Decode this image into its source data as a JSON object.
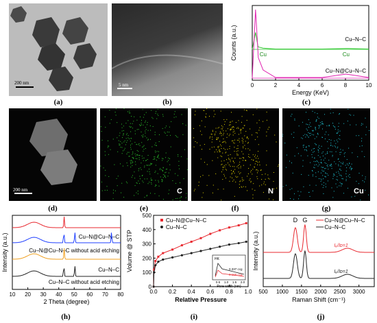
{
  "panel_letters": [
    "(a)",
    "(b)",
    "(c)",
    "(d)",
    "(e)",
    "(f)",
    "(g)",
    "(h)",
    "(i)",
    "(j)"
  ],
  "scale_bars": {
    "a": "200 nm",
    "b": "5 nm",
    "d": "200 nm"
  },
  "mapping_labels": {
    "e": "C",
    "f": "N",
    "g": "Cu"
  },
  "colors": {
    "red": "#e8282f",
    "black": "#222222",
    "blue": "#1f3fff",
    "orange": "#f0a020",
    "magenta": "#e020b0",
    "green": "#2ec82e",
    "yellow": "#e8d800",
    "cyan": "#20c8d8"
  },
  "chart_data": [
    {
      "id": "c",
      "type": "line",
      "xlabel": "Energy (KeV)",
      "ylabel": "Counts (a.u.)",
      "xlim": [
        0,
        10
      ],
      "xticks": [
        0,
        2,
        4,
        6,
        8,
        10
      ],
      "series": [
        {
          "name": "Cu–N–C",
          "x": [
            0,
            0.28,
            0.5,
            0.93,
            2,
            4,
            6,
            8.05,
            10
          ],
          "y": [
            0,
            0.55,
            0.08,
            0.04,
            0.01,
            0.01,
            0.01,
            0.03,
            0.01
          ]
        },
        {
          "name": "Cu–N@Cu–N–C",
          "x": [
            0,
            0.28,
            0.39,
            0.52,
            0.93,
            2,
            4,
            6,
            8.05,
            10
          ],
          "y": [
            0,
            1.0,
            0.7,
            0.3,
            0.12,
            0.01,
            0.01,
            0.01,
            0.06,
            0.01
          ]
        }
      ],
      "annotations": [
        "Cu",
        "Cu"
      ]
    },
    {
      "id": "h",
      "type": "line",
      "xlabel": "2 Theta (degree)",
      "ylabel": "Intensity (a.u.)",
      "xlim": [
        10,
        80
      ],
      "xticks": [
        10,
        20,
        30,
        40,
        50,
        60,
        70,
        80
      ],
      "series": [
        {
          "name": "Cu–N@Cu–N–C",
          "peaks": [
            24,
            43.5
          ]
        },
        {
          "name": "Cu–N@Cu–N–C without acid etching",
          "peaks": [
            24,
            43.3,
            50.4,
            74.1
          ]
        },
        {
          "name": "Cu–N–C",
          "peaks": [
            24,
            43.5
          ]
        },
        {
          "name": "Cu–N–C without acid etching",
          "peaks": [
            24,
            43.3,
            50.4
          ]
        }
      ]
    },
    {
      "id": "i",
      "type": "line",
      "xlabel": "Relative Pressure",
      "ylabel": "Volume @ STP",
      "xlim": [
        0,
        1.0
      ],
      "ylim": [
        0,
        500
      ],
      "xticks": [
        0.0,
        0.2,
        0.4,
        0.6,
        0.8,
        1.0
      ],
      "yticks": [
        0,
        100,
        200,
        300,
        400,
        500
      ],
      "series": [
        {
          "name": "Cu–N@Cu–N–C",
          "x": [
            0,
            0.005,
            0.02,
            0.05,
            0.1,
            0.2,
            0.3,
            0.4,
            0.5,
            0.6,
            0.7,
            0.8,
            0.9,
            0.98
          ],
          "y": [
            0,
            120,
            180,
            210,
            235,
            260,
            290,
            315,
            340,
            370,
            395,
            415,
            430,
            445
          ]
        },
        {
          "name": "Cu–N–C",
          "x": [
            0,
            0.005,
            0.02,
            0.05,
            0.1,
            0.2,
            0.3,
            0.4,
            0.5,
            0.6,
            0.7,
            0.8,
            0.9,
            0.98
          ],
          "y": [
            0,
            100,
            150,
            175,
            190,
            205,
            220,
            235,
            250,
            265,
            280,
            295,
            305,
            315
          ]
        }
      ],
      "inset": {
        "label": "HK",
        "xlabel": "Pore width (nm)",
        "annotations": [
          "0.337 ccg",
          "0.166 ccg"
        ],
        "xticks": [
          0.5,
          1.0,
          1.5,
          2.0
        ]
      }
    },
    {
      "id": "j",
      "type": "line",
      "xlabel": "Raman Shift (cm⁻¹)",
      "ylabel": "Intensity (a.u.)",
      "xlim": [
        500,
        3400
      ],
      "xticks": [
        500,
        1000,
        1500,
        2000,
        2500,
        3000
      ],
      "peak_labels": [
        "D",
        "G"
      ],
      "series": [
        {
          "name": "Cu–N@Cu–N–C",
          "ratio_label": "Iₑ/Iᴅ=1"
        },
        {
          "name": "Cu–N–C",
          "ratio_label": "Iₑ/Iᴅ=1"
        }
      ]
    }
  ]
}
